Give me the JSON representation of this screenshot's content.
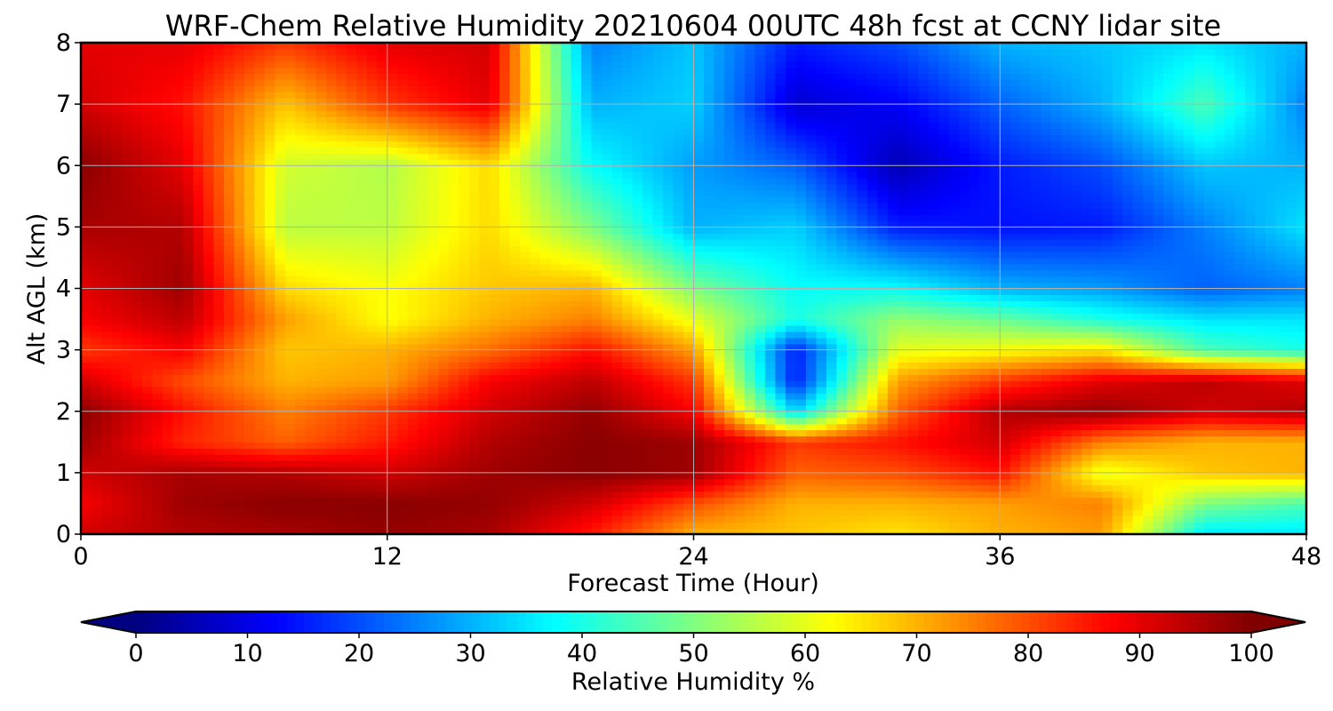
{
  "chart_data": {
    "type": "heatmap",
    "title": "WRF-Chem Relative Humidity 20210604 00UTC 48h fcst at CCNY lidar site",
    "xlabel": "Forecast Time (Hour)",
    "ylabel": "Alt AGL (km)",
    "xlim": [
      0,
      48
    ],
    "ylim": [
      0,
      8
    ],
    "x_ticks": [
      0,
      12,
      24,
      36,
      48
    ],
    "y_ticks": [
      0,
      1,
      2,
      3,
      4,
      5,
      6,
      7,
      8
    ],
    "grid": true,
    "x": [
      0,
      4,
      8,
      12,
      16,
      20,
      24,
      28,
      32,
      36,
      40,
      44,
      48
    ],
    "y": [
      0,
      0.5,
      1,
      1.5,
      2,
      2.5,
      3,
      3.5,
      4,
      5,
      6,
      7,
      8
    ],
    "z": [
      [
        92,
        95,
        96,
        98,
        96,
        85,
        70,
        68,
        65,
        70,
        72,
        35,
        35
      ],
      [
        88,
        97,
        99,
        99,
        98,
        92,
        80,
        70,
        70,
        72,
        75,
        50,
        45
      ],
      [
        92,
        96,
        95,
        92,
        97,
        99,
        97,
        78,
        80,
        86,
        60,
        68,
        70
      ],
      [
        97,
        84,
        78,
        85,
        95,
        99,
        97,
        82,
        86,
        92,
        75,
        70,
        70
      ],
      [
        99,
        86,
        75,
        82,
        92,
        98,
        88,
        33,
        78,
        95,
        98,
        92,
        95
      ],
      [
        92,
        80,
        70,
        72,
        88,
        94,
        82,
        15,
        72,
        82,
        90,
        94,
        90
      ],
      [
        82,
        88,
        68,
        70,
        77,
        86,
        72,
        15,
        60,
        62,
        65,
        45,
        40
      ],
      [
        88,
        94,
        72,
        62,
        70,
        75,
        60,
        40,
        52,
        48,
        40,
        35,
        35
      ],
      [
        90,
        97,
        66,
        62,
        68,
        70,
        50,
        38,
        38,
        30,
        28,
        22,
        25
      ],
      [
        96,
        95,
        56,
        56,
        66,
        50,
        30,
        33,
        15,
        14,
        15,
        25,
        35
      ],
      [
        99,
        90,
        58,
        55,
        66,
        38,
        28,
        22,
        5,
        15,
        20,
        32,
        30
      ],
      [
        92,
        86,
        68,
        82,
        90,
        30,
        33,
        8,
        12,
        22,
        30,
        45,
        25
      ],
      [
        90,
        90,
        82,
        90,
        92,
        25,
        32,
        15,
        20,
        30,
        32,
        35,
        30
      ]
    ],
    "colorbar": {
      "label": "Relative Humidity %",
      "ticks": [
        0,
        10,
        20,
        30,
        40,
        50,
        60,
        70,
        80,
        90,
        100
      ],
      "range": [
        0,
        100
      ],
      "extend": "both",
      "colormap": "jet"
    }
  }
}
